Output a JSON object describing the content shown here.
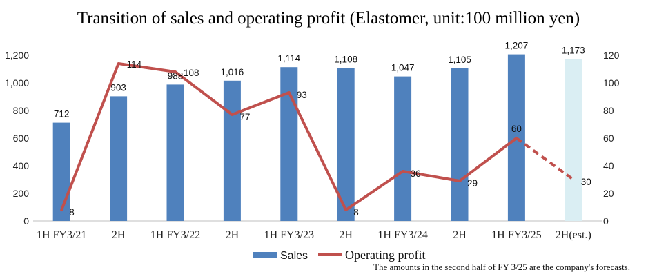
{
  "chart_data": {
    "type": "bar",
    "title": "Transition of sales and operating profit (Elastomer, unit:100 million yen)",
    "categories": [
      "1H FY3/21",
      "2H",
      "1H FY3/22",
      "2H",
      "1H FY3/23",
      "2H",
      "1H FY3/24",
      "2H",
      "1H FY3/25",
      "2H(est.)"
    ],
    "series": [
      {
        "name": "Sales",
        "type": "bar",
        "axis": "left",
        "color": "#4f81bd",
        "estimate_color": "#daeef3",
        "values": [
          712,
          903,
          988,
          1016,
          1114,
          1108,
          1047,
          1105,
          1207,
          1173
        ],
        "value_labels": [
          "712",
          "903",
          "988",
          "1,016",
          "1,114",
          "1,108",
          "1,047",
          "1,105",
          "1,207",
          "1,173"
        ],
        "estimated": [
          false,
          false,
          false,
          false,
          false,
          false,
          false,
          false,
          false,
          true
        ]
      },
      {
        "name": "Operating profit",
        "type": "line",
        "axis": "right",
        "color": "#c0504d",
        "values": [
          8,
          114,
          108,
          77,
          93,
          8,
          36,
          29,
          60,
          30
        ],
        "value_labels": [
          "8",
          "114",
          "108",
          "77",
          "93",
          "8",
          "36",
          "29",
          "60",
          "30"
        ],
        "dashed_from_index": 8
      }
    ],
    "y_left": {
      "min": 0,
      "max": 1200,
      "step": 200,
      "tick_labels": [
        "0",
        "200",
        "400",
        "600",
        "800",
        "1,000",
        "1,200"
      ]
    },
    "y_right": {
      "min": 0,
      "max": 120,
      "step": 20,
      "tick_labels": [
        "0",
        "20",
        "40",
        "60",
        "80",
        "100",
        "120"
      ]
    },
    "grid": false,
    "legend": {
      "position": "bottom",
      "items": [
        "Sales",
        "Operating profit"
      ]
    },
    "note": "The amounts in the second half of FY 3/25 are the company's forecasts."
  }
}
